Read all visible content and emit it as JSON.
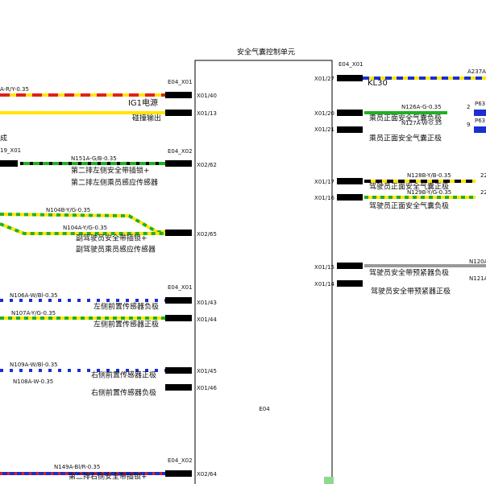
{
  "module": {
    "title": "安全气囊控制单元",
    "id": "E04"
  },
  "connectors": [
    "E04_X01",
    "E04_X02",
    "E04_X01",
    "E04_X02",
    "E04_X01",
    "19_X01"
  ],
  "pins": [
    "X01/40",
    "X01/13",
    "X02/62",
    "X02/65",
    "X01/43",
    "X01/44",
    "X01/45",
    "X01/46",
    "X02/64",
    "X01/27",
    "X01/20",
    "X01/21",
    "X01/17",
    "X01/16",
    "X01/15",
    "X01/14"
  ],
  "wires": [
    "A-R/Y-0.35",
    "N151A-G/B-0.35",
    "N104B-Y/G-0.35",
    "N104A-Y/G-0.35",
    "N106A-W/Bl-0.35",
    "N107A-Y/G-0.35",
    "N109A-W/Bl-0.35",
    "N108A-W-0.35",
    "N149A-Bl/R-0.35",
    "A237A-",
    "N126A-G-0.35",
    "N127A-W-0.35",
    "N128B-Y/B-0.35",
    "N129B-Y/G-0.35",
    "N120A",
    "N121A"
  ],
  "signals": [
    "IG1电源",
    "碰撞输出",
    "第二排左侧安全带插锁+",
    "第二排左侧乘员感应传感器",
    "副驾驶员安全带插锁+",
    "副驾驶员乘员感应传感器",
    "左侧前置传感器负极",
    "左侧前置传感器正极",
    "右侧前置传感器正极",
    "右侧前置传感器负极",
    "第二排右侧安全带插锁+",
    "KL30",
    "乘员正面安全气囊负极",
    "乘员正面安全气囊正极",
    "驾驶员正面安全气囊正极",
    "驾驶员正面安全气囊负极",
    "驾驶员安全带预紧器负极",
    "驾驶员安全带预紧器正极",
    "成"
  ],
  "refs": [
    "P63",
    "P63",
    "2",
    "9",
    "22",
    "22"
  ]
}
